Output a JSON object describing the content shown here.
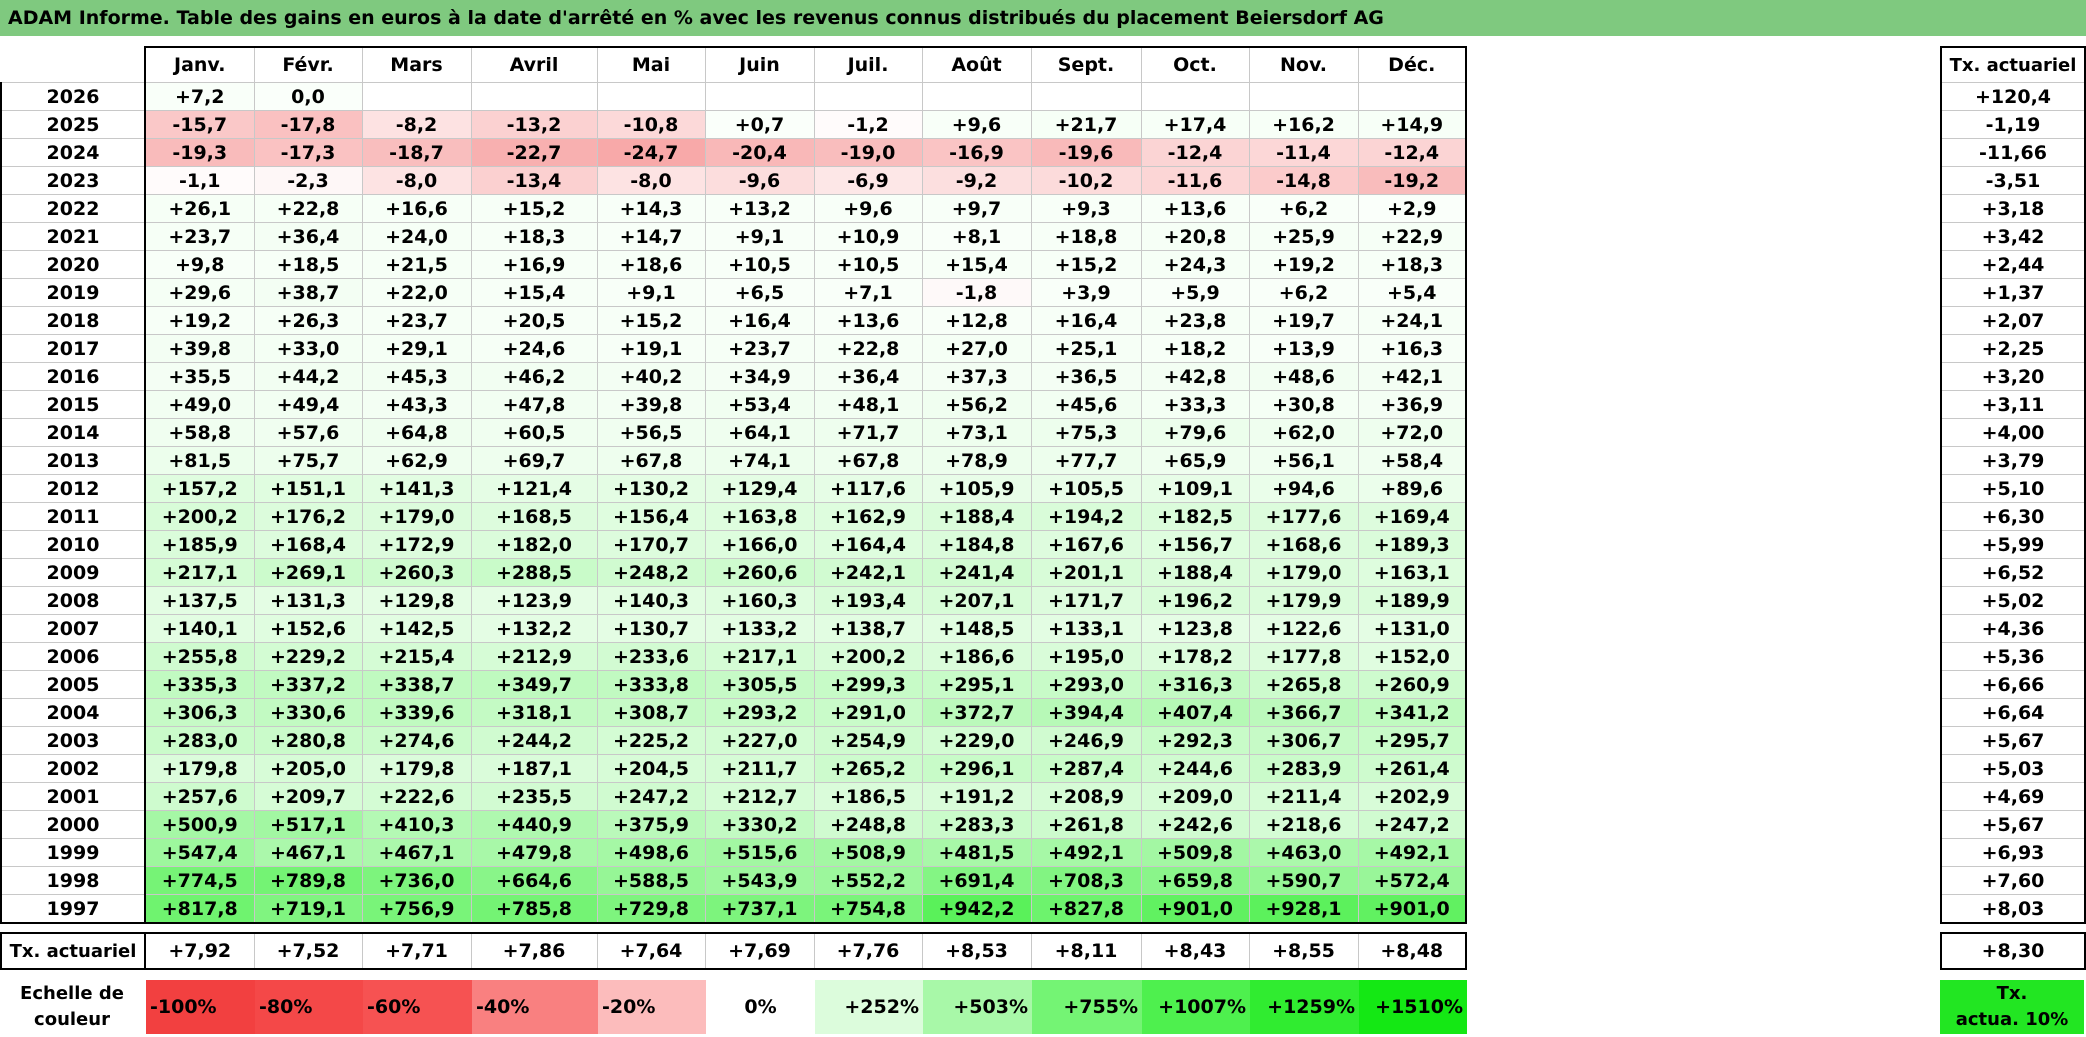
{
  "title": "ADAM Informe. Table des gains en euros à la date d'arrêté en % avec les revenus connus distribués du placement Beiersdorf AG",
  "months": [
    "Janv.",
    "Févr.",
    "Mars",
    "Avril",
    "Mai",
    "Juin",
    "Juil.",
    "Août",
    "Sept.",
    "Oct.",
    "Nov.",
    "Déc."
  ],
  "actuarial_header": "Tx. actuariel",
  "rows": [
    {
      "year": "2026",
      "values": [
        "+7,2",
        "0,0",
        "",
        "",
        "",
        "",
        "",
        "",
        "",
        "",
        "",
        ""
      ],
      "act": "+120,4"
    },
    {
      "year": "2025",
      "values": [
        "-15,7",
        "-17,8",
        "-8,2",
        "-13,2",
        "-10,8",
        "+0,7",
        "-1,2",
        "+9,6",
        "+21,7",
        "+17,4",
        "+16,2",
        "+14,9"
      ],
      "act": "-1,19"
    },
    {
      "year": "2024",
      "values": [
        "-19,3",
        "-17,3",
        "-18,7",
        "-22,7",
        "-24,7",
        "-20,4",
        "-19,0",
        "-16,9",
        "-19,6",
        "-12,4",
        "-11,4",
        "-12,4"
      ],
      "act": "-11,66"
    },
    {
      "year": "2023",
      "values": [
        "-1,1",
        "-2,3",
        "-8,0",
        "-13,4",
        "-8,0",
        "-9,6",
        "-6,9",
        "-9,2",
        "-10,2",
        "-11,6",
        "-14,8",
        "-19,2"
      ],
      "act": "-3,51"
    },
    {
      "year": "2022",
      "values": [
        "+26,1",
        "+22,8",
        "+16,6",
        "+15,2",
        "+14,3",
        "+13,2",
        "+9,6",
        "+9,7",
        "+9,3",
        "+13,6",
        "+6,2",
        "+2,9"
      ],
      "act": "+3,18"
    },
    {
      "year": "2021",
      "values": [
        "+23,7",
        "+36,4",
        "+24,0",
        "+18,3",
        "+14,7",
        "+9,1",
        "+10,9",
        "+8,1",
        "+18,8",
        "+20,8",
        "+25,9",
        "+22,9"
      ],
      "act": "+3,42"
    },
    {
      "year": "2020",
      "values": [
        "+9,8",
        "+18,5",
        "+21,5",
        "+16,9",
        "+18,6",
        "+10,5",
        "+10,5",
        "+15,4",
        "+15,2",
        "+24,3",
        "+19,2",
        "+18,3"
      ],
      "act": "+2,44"
    },
    {
      "year": "2019",
      "values": [
        "+29,6",
        "+38,7",
        "+22,0",
        "+15,4",
        "+9,1",
        "+6,5",
        "+7,1",
        "-1,8",
        "+3,9",
        "+5,9",
        "+6,2",
        "+5,4"
      ],
      "act": "+1,37"
    },
    {
      "year": "2018",
      "values": [
        "+19,2",
        "+26,3",
        "+23,7",
        "+20,5",
        "+15,2",
        "+16,4",
        "+13,6",
        "+12,8",
        "+16,4",
        "+23,8",
        "+19,7",
        "+24,1"
      ],
      "act": "+2,07"
    },
    {
      "year": "2017",
      "values": [
        "+39,8",
        "+33,0",
        "+29,1",
        "+24,6",
        "+19,1",
        "+23,7",
        "+22,8",
        "+27,0",
        "+25,1",
        "+18,2",
        "+13,9",
        "+16,3"
      ],
      "act": "+2,25"
    },
    {
      "year": "2016",
      "values": [
        "+35,5",
        "+44,2",
        "+45,3",
        "+46,2",
        "+40,2",
        "+34,9",
        "+36,4",
        "+37,3",
        "+36,5",
        "+42,8",
        "+48,6",
        "+42,1"
      ],
      "act": "+3,20"
    },
    {
      "year": "2015",
      "values": [
        "+49,0",
        "+49,4",
        "+43,3",
        "+47,8",
        "+39,8",
        "+53,4",
        "+48,1",
        "+56,2",
        "+45,6",
        "+33,3",
        "+30,8",
        "+36,9"
      ],
      "act": "+3,11"
    },
    {
      "year": "2014",
      "values": [
        "+58,8",
        "+57,6",
        "+64,8",
        "+60,5",
        "+56,5",
        "+64,1",
        "+71,7",
        "+73,1",
        "+75,3",
        "+79,6",
        "+62,0",
        "+72,0"
      ],
      "act": "+4,00"
    },
    {
      "year": "2013",
      "values": [
        "+81,5",
        "+75,7",
        "+62,9",
        "+69,7",
        "+67,8",
        "+74,1",
        "+67,8",
        "+78,9",
        "+77,7",
        "+65,9",
        "+56,1",
        "+58,4"
      ],
      "act": "+3,79"
    },
    {
      "year": "2012",
      "values": [
        "+157,2",
        "+151,1",
        "+141,3",
        "+121,4",
        "+130,2",
        "+129,4",
        "+117,6",
        "+105,9",
        "+105,5",
        "+109,1",
        "+94,6",
        "+89,6"
      ],
      "act": "+5,10"
    },
    {
      "year": "2011",
      "values": [
        "+200,2",
        "+176,2",
        "+179,0",
        "+168,5",
        "+156,4",
        "+163,8",
        "+162,9",
        "+188,4",
        "+194,2",
        "+182,5",
        "+177,6",
        "+169,4"
      ],
      "act": "+6,30"
    },
    {
      "year": "2010",
      "values": [
        "+185,9",
        "+168,4",
        "+172,9",
        "+182,0",
        "+170,7",
        "+166,0",
        "+164,4",
        "+184,8",
        "+167,6",
        "+156,7",
        "+168,6",
        "+189,3"
      ],
      "act": "+5,99"
    },
    {
      "year": "2009",
      "values": [
        "+217,1",
        "+269,1",
        "+260,3",
        "+288,5",
        "+248,2",
        "+260,6",
        "+242,1",
        "+241,4",
        "+201,1",
        "+188,4",
        "+179,0",
        "+163,1"
      ],
      "act": "+6,52"
    },
    {
      "year": "2008",
      "values": [
        "+137,5",
        "+131,3",
        "+129,8",
        "+123,9",
        "+140,3",
        "+160,3",
        "+193,4",
        "+207,1",
        "+171,7",
        "+196,2",
        "+179,9",
        "+189,9"
      ],
      "act": "+5,02"
    },
    {
      "year": "2007",
      "values": [
        "+140,1",
        "+152,6",
        "+142,5",
        "+132,2",
        "+130,7",
        "+133,2",
        "+138,7",
        "+148,5",
        "+133,1",
        "+123,8",
        "+122,6",
        "+131,0"
      ],
      "act": "+4,36"
    },
    {
      "year": "2006",
      "values": [
        "+255,8",
        "+229,2",
        "+215,4",
        "+212,9",
        "+233,6",
        "+217,1",
        "+200,2",
        "+186,6",
        "+195,0",
        "+178,2",
        "+177,8",
        "+152,0"
      ],
      "act": "+5,36"
    },
    {
      "year": "2005",
      "values": [
        "+335,3",
        "+337,2",
        "+338,7",
        "+349,7",
        "+333,8",
        "+305,5",
        "+299,3",
        "+295,1",
        "+293,0",
        "+316,3",
        "+265,8",
        "+260,9"
      ],
      "act": "+6,66"
    },
    {
      "year": "2004",
      "values": [
        "+306,3",
        "+330,6",
        "+339,6",
        "+318,1",
        "+308,7",
        "+293,2",
        "+291,0",
        "+372,7",
        "+394,4",
        "+407,4",
        "+366,7",
        "+341,2"
      ],
      "act": "+6,64"
    },
    {
      "year": "2003",
      "values": [
        "+283,0",
        "+280,8",
        "+274,6",
        "+244,2",
        "+225,2",
        "+227,0",
        "+254,9",
        "+229,0",
        "+246,9",
        "+292,3",
        "+306,7",
        "+295,7"
      ],
      "act": "+5,67"
    },
    {
      "year": "2002",
      "values": [
        "+179,8",
        "+205,0",
        "+179,8",
        "+187,1",
        "+204,5",
        "+211,7",
        "+265,2",
        "+296,1",
        "+287,4",
        "+244,6",
        "+283,9",
        "+261,4"
      ],
      "act": "+5,03"
    },
    {
      "year": "2001",
      "values": [
        "+257,6",
        "+209,7",
        "+222,6",
        "+235,5",
        "+247,2",
        "+212,7",
        "+186,5",
        "+191,2",
        "+208,9",
        "+209,0",
        "+211,4",
        "+202,9"
      ],
      "act": "+4,69"
    },
    {
      "year": "2000",
      "values": [
        "+500,9",
        "+517,1",
        "+410,3",
        "+440,9",
        "+375,9",
        "+330,2",
        "+248,8",
        "+283,3",
        "+261,8",
        "+242,6",
        "+218,6",
        "+247,2"
      ],
      "act": "+5,67"
    },
    {
      "year": "1999",
      "values": [
        "+547,4",
        "+467,1",
        "+467,1",
        "+479,8",
        "+498,6",
        "+515,6",
        "+508,9",
        "+481,5",
        "+492,1",
        "+509,8",
        "+463,0",
        "+492,1"
      ],
      "act": "+6,93"
    },
    {
      "year": "1998",
      "values": [
        "+774,5",
        "+789,8",
        "+736,0",
        "+664,6",
        "+588,5",
        "+543,9",
        "+552,2",
        "+691,4",
        "+708,3",
        "+659,8",
        "+590,7",
        "+572,4"
      ],
      "act": "+7,60"
    },
    {
      "year": "1997",
      "values": [
        "+817,8",
        "+719,1",
        "+756,9",
        "+785,8",
        "+729,8",
        "+737,1",
        "+754,8",
        "+942,2",
        "+827,8",
        "+901,0",
        "+928,1",
        "+901,0"
      ],
      "act": "+8,03"
    }
  ],
  "totals": {
    "label": "Tx. actuariel",
    "values": [
      "+7,92",
      "+7,52",
      "+7,71",
      "+7,86",
      "+7,64",
      "+7,69",
      "+7,76",
      "+8,53",
      "+8,11",
      "+8,43",
      "+8,55",
      "+8,48"
    ],
    "act": "+8,30"
  },
  "scale": {
    "label_line1": "Echelle de",
    "label_line2": "couleur",
    "items": [
      {
        "label": "-100%",
        "color": "#f24040",
        "kind": "neg"
      },
      {
        "label": "-80%",
        "color": "#f44848",
        "kind": "neg"
      },
      {
        "label": "-60%",
        "color": "#f65252",
        "kind": "neg"
      },
      {
        "label": "-40%",
        "color": "#f98080",
        "kind": "neg"
      },
      {
        "label": "-20%",
        "color": "#fcbcbc",
        "kind": "neg"
      },
      {
        "label": "0%",
        "color": "#ffffff",
        "kind": "zero"
      },
      {
        "label": "+252%",
        "color": "#dcfcdc",
        "kind": "pos"
      },
      {
        "label": "+503%",
        "color": "#a8f8a8",
        "kind": "pos"
      },
      {
        "label": "+755%",
        "color": "#74f474",
        "kind": "pos"
      },
      {
        "label": "+1007%",
        "color": "#4ef04e",
        "kind": "pos"
      },
      {
        "label": "+1259%",
        "color": "#30ec30",
        "kind": "pos"
      },
      {
        "label": "+1510%",
        "color": "#14e814",
        "kind": "pos"
      }
    ],
    "act_line1": "Tx.",
    "act_line2": "actua. 10%",
    "act_color": "#22e622"
  }
}
